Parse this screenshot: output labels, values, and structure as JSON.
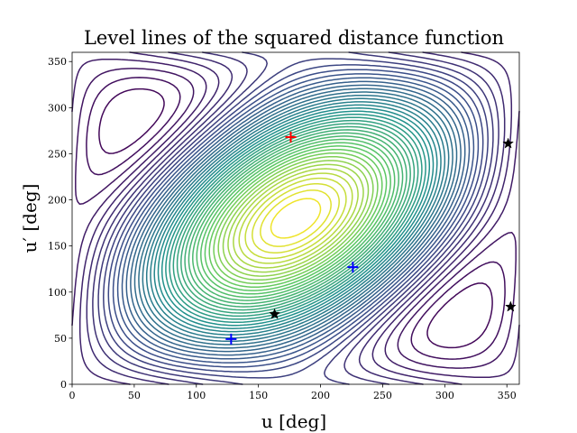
{
  "chart_data": {
    "type": "contour",
    "title": "Level lines of the squared distance function",
    "xlabel": "u [deg]",
    "ylabel": "u′ [deg]",
    "xlim": [
      0,
      360
    ],
    "ylim": [
      0,
      360
    ],
    "x_ticks": [
      0,
      50,
      100,
      150,
      200,
      250,
      300,
      350
    ],
    "y_ticks": [
      0,
      50,
      100,
      150,
      200,
      250,
      300,
      350
    ],
    "colormap": [
      "#440154",
      "#3b528b",
      "#21918c",
      "#5ec962",
      "#fde725"
    ],
    "maximum": {
      "x": 176,
      "y": 268,
      "color": "#ff0000"
    },
    "minima": [
      {
        "x": 128,
        "y": 49
      },
      {
        "x": 226,
        "y": 127
      }
    ],
    "minima_color": "#0000ff",
    "stars": [
      {
        "x": 163,
        "y": 76
      },
      {
        "x": 351,
        "y": 261
      },
      {
        "x": 353,
        "y": 84
      }
    ],
    "star_color": "#000000"
  }
}
